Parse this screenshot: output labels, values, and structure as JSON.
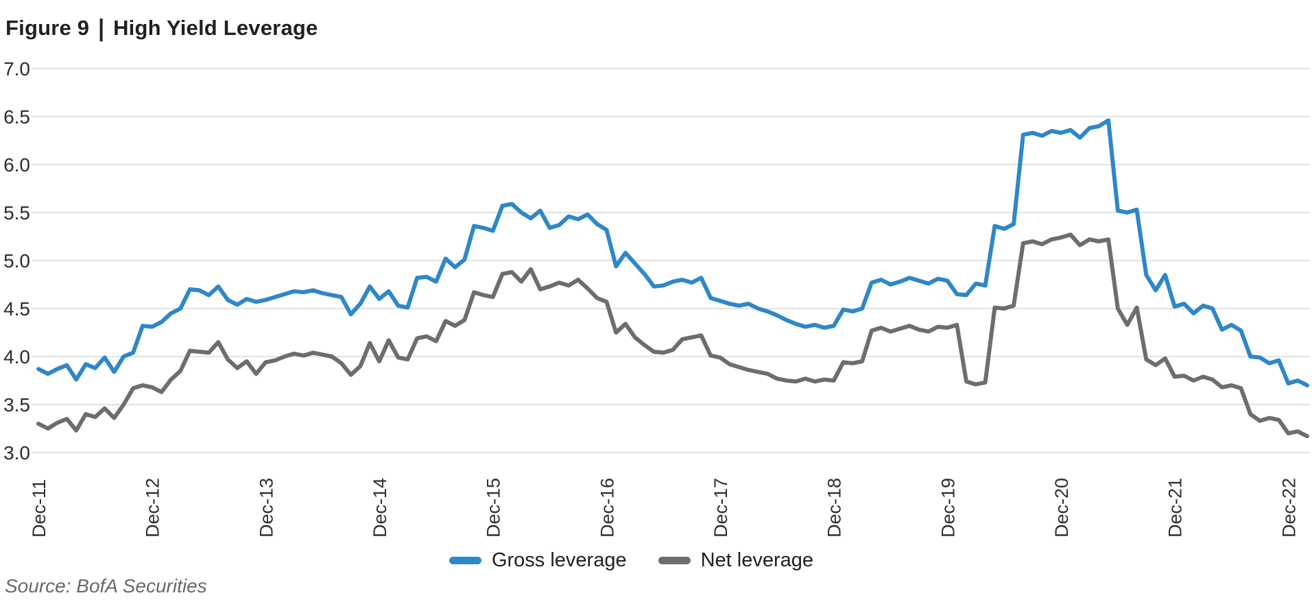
{
  "title": {
    "figure_label": "Figure 9",
    "separator": "|",
    "text": "High Yield Leverage"
  },
  "source": "Source: BofA Securities",
  "legend": [
    {
      "label": "Gross leverage",
      "color": "#2e87c8"
    },
    {
      "label": "Net leverage",
      "color": "#6d6d6c"
    }
  ],
  "colors": {
    "gross_line": "#2e87c8",
    "net_line": "#6d6d6c",
    "gridline": "#d9d9d9",
    "axis_text": "#2b2b2b",
    "title_text": "#231f20",
    "source_text": "#65686c"
  },
  "chart_data": {
    "type": "line",
    "title": "High Yield Leverage",
    "frequency": "monthly",
    "x_start_label": "Dec-11",
    "x_end_label": "Dec-22",
    "x_tick_labels": [
      "Dec-11",
      "Dec-12",
      "Dec-13",
      "Dec-14",
      "Dec-15",
      "Dec-16",
      "Dec-17",
      "Dec-18",
      "Dec-19",
      "Dec-20",
      "Dec-21",
      "Dec-22"
    ],
    "x_tick_month_indices": [
      0,
      12,
      24,
      36,
      48,
      60,
      72,
      84,
      96,
      108,
      120,
      132
    ],
    "ylim": [
      3.0,
      7.0
    ],
    "yticks": [
      "7.0",
      "6.5",
      "6.0",
      "5.5",
      "5.0",
      "4.5",
      "4.0",
      "3.5",
      "3.0"
    ],
    "grid": true,
    "legend_position": "bottom-center",
    "series": [
      {
        "name": "Gross leverage",
        "color": "#2e87c8",
        "values": [
          3.87,
          3.82,
          3.87,
          3.91,
          3.76,
          3.92,
          3.88,
          3.99,
          3.84,
          4.0,
          4.04,
          4.32,
          4.31,
          4.36,
          4.45,
          4.5,
          4.7,
          4.69,
          4.64,
          4.73,
          4.59,
          4.54,
          4.6,
          4.57,
          4.59,
          4.62,
          4.65,
          4.68,
          4.67,
          4.69,
          4.66,
          4.64,
          4.62,
          4.44,
          4.55,
          4.73,
          4.6,
          4.68,
          4.53,
          4.51,
          4.82,
          4.83,
          4.78,
          5.02,
          4.93,
          5.01,
          5.36,
          5.34,
          5.31,
          5.57,
          5.59,
          5.5,
          5.44,
          5.52,
          5.34,
          5.37,
          5.46,
          5.43,
          5.48,
          5.38,
          5.32,
          4.94,
          5.08,
          4.97,
          4.86,
          4.73,
          4.74,
          4.78,
          4.8,
          4.77,
          4.82,
          4.61,
          4.58,
          4.55,
          4.53,
          4.55,
          4.5,
          4.47,
          4.43,
          4.38,
          4.34,
          4.31,
          4.33,
          4.3,
          4.32,
          4.49,
          4.47,
          4.5,
          4.77,
          4.8,
          4.75,
          4.78,
          4.82,
          4.79,
          4.76,
          4.81,
          4.79,
          4.65,
          4.64,
          4.76,
          4.74,
          5.36,
          5.33,
          5.38,
          6.31,
          6.33,
          6.3,
          6.35,
          6.33,
          6.36,
          6.28,
          6.38,
          6.4,
          6.46,
          5.52,
          5.5,
          5.53,
          4.85,
          4.69,
          4.85,
          4.52,
          4.55,
          4.45,
          4.53,
          4.5,
          4.28,
          4.33,
          4.27,
          4.0,
          3.99,
          3.93,
          3.96,
          3.72,
          3.75,
          3.7
        ]
      },
      {
        "name": "Net leverage",
        "color": "#6d6d6c",
        "values": [
          3.3,
          3.25,
          3.31,
          3.35,
          3.23,
          3.4,
          3.37,
          3.46,
          3.36,
          3.5,
          3.67,
          3.7,
          3.68,
          3.63,
          3.76,
          3.85,
          4.06,
          4.05,
          4.04,
          4.15,
          3.97,
          3.88,
          3.95,
          3.82,
          3.94,
          3.96,
          4.0,
          4.03,
          4.01,
          4.04,
          4.02,
          4.0,
          3.93,
          3.81,
          3.9,
          4.14,
          3.95,
          4.17,
          3.99,
          3.97,
          4.19,
          4.21,
          4.16,
          4.37,
          4.32,
          4.38,
          4.67,
          4.64,
          4.62,
          4.86,
          4.88,
          4.78,
          4.91,
          4.7,
          4.73,
          4.77,
          4.74,
          4.8,
          4.71,
          4.61,
          4.57,
          4.25,
          4.34,
          4.2,
          4.12,
          4.05,
          4.04,
          4.07,
          4.18,
          4.2,
          4.22,
          4.01,
          3.99,
          3.92,
          3.89,
          3.86,
          3.84,
          3.82,
          3.77,
          3.75,
          3.74,
          3.77,
          3.74,
          3.76,
          3.75,
          3.94,
          3.93,
          3.95,
          4.27,
          4.3,
          4.26,
          4.29,
          4.32,
          4.28,
          4.26,
          4.31,
          4.3,
          4.33,
          3.74,
          3.71,
          3.73,
          4.51,
          4.5,
          4.53,
          5.18,
          5.2,
          5.17,
          5.22,
          5.24,
          5.27,
          5.16,
          5.22,
          5.2,
          5.22,
          4.5,
          4.33,
          4.51,
          3.97,
          3.91,
          3.98,
          3.79,
          3.8,
          3.75,
          3.79,
          3.76,
          3.68,
          3.7,
          3.67,
          3.4,
          3.33,
          3.36,
          3.34,
          3.2,
          3.22,
          3.17
        ]
      }
    ]
  }
}
